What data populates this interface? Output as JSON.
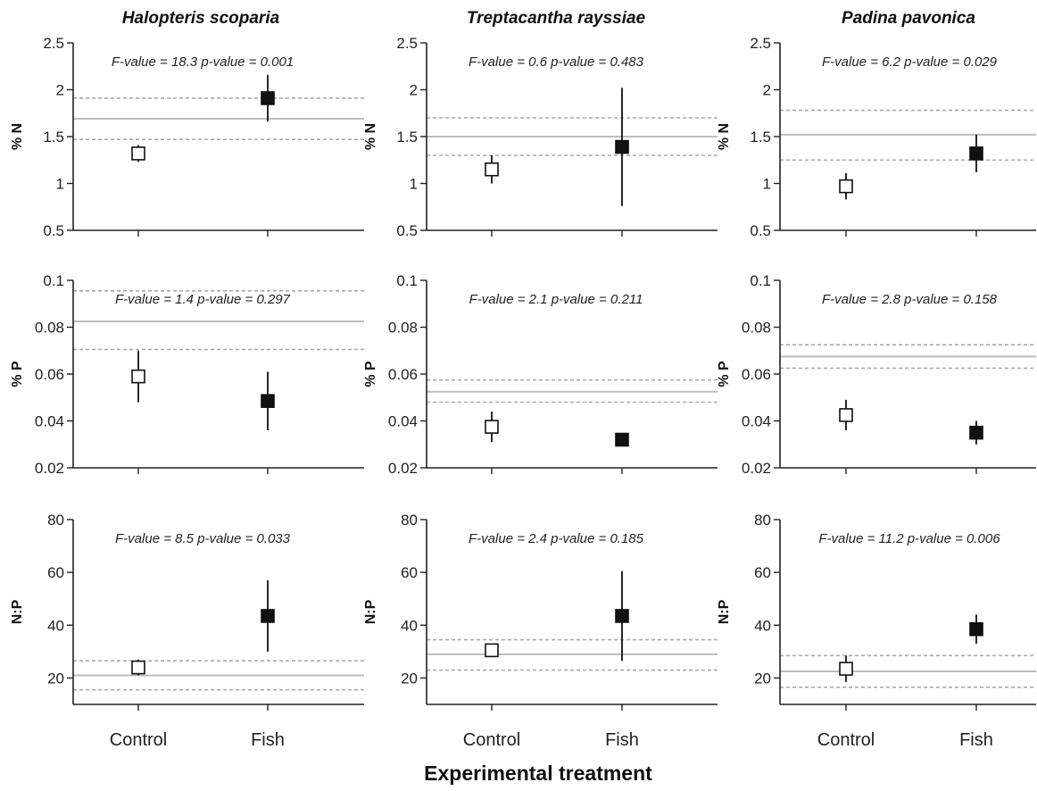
{
  "figure": {
    "x_axis_title": "Experimental treatment",
    "column_titles": [
      "Halopteris scoparia",
      "Treptacantha rayssiae",
      "Padina pavonica"
    ]
  },
  "chart_data": [
    {
      "type": "scatter",
      "species": "Halopteris scoparia",
      "ylabel": "% N",
      "ylim": [
        0.5,
        2.5
      ],
      "yticks": [
        "0.5",
        "1",
        "1.5",
        "2",
        "2.5"
      ],
      "categories": [
        "Control",
        "Fish"
      ],
      "values": [
        1.32,
        1.91
      ],
      "errors": [
        0.09,
        0.25
      ],
      "reference": {
        "mean": 1.69,
        "lower": 1.47,
        "upper": 1.91
      },
      "stats": "F-value = 18.3   p-value = 0.001",
      "markers": [
        "open",
        "filled"
      ]
    },
    {
      "type": "scatter",
      "species": "Treptacantha rayssiae",
      "ylabel": "% N",
      "ylim": [
        0.5,
        2.5
      ],
      "yticks": [
        "0.5",
        "1",
        "1.5",
        "2",
        "2.5"
      ],
      "categories": [
        "Control",
        "Fish"
      ],
      "values": [
        1.15,
        1.39
      ],
      "errors": [
        0.15,
        0.63
      ],
      "reference": {
        "mean": 1.5,
        "lower": 1.3,
        "upper": 1.7
      },
      "stats": "F-value = 0.6   p-value = 0.483",
      "markers": [
        "open",
        "filled"
      ]
    },
    {
      "type": "scatter",
      "species": "Padina pavonica",
      "ylabel": "% N",
      "ylim": [
        0.5,
        2.5
      ],
      "yticks": [
        "0.5",
        "1",
        "1.5",
        "2",
        "2.5"
      ],
      "categories": [
        "Control",
        "Fish"
      ],
      "values": [
        0.97,
        1.32
      ],
      "errors": [
        0.14,
        0.2
      ],
      "reference": {
        "mean": 1.52,
        "lower": 1.25,
        "upper": 1.78
      },
      "stats": "F-value = 6.2   p-value = 0.029",
      "markers": [
        "open",
        "filled"
      ]
    },
    {
      "type": "scatter",
      "species": "Halopteris scoparia",
      "ylabel": "% P",
      "ylim": [
        0.02,
        0.1
      ],
      "yticks": [
        "0.02",
        "0.04",
        "0.06",
        "0.08",
        "0.1"
      ],
      "categories": [
        "Control",
        "Fish"
      ],
      "values": [
        0.059,
        0.0485
      ],
      "errors": [
        0.011,
        0.0125
      ],
      "reference": {
        "mean": 0.0825,
        "lower": 0.0705,
        "upper": 0.0955
      },
      "stats": "F-value = 1.4   p-value = 0.297",
      "markers": [
        "open",
        "filled"
      ]
    },
    {
      "type": "scatter",
      "species": "Treptacantha rayssiae",
      "ylabel": "% P",
      "ylim": [
        0.02,
        0.1
      ],
      "yticks": [
        "0.02",
        "0.04",
        "0.06",
        "0.08",
        "0.1"
      ],
      "categories": [
        "Control",
        "Fish"
      ],
      "values": [
        0.0375,
        0.032
      ],
      "errors": [
        0.0065,
        0.0025
      ],
      "reference": {
        "mean": 0.0525,
        "lower": 0.048,
        "upper": 0.0575
      },
      "stats": "F-value = 2.1   p-value = 0.211",
      "markers": [
        "open",
        "filled"
      ]
    },
    {
      "type": "scatter",
      "species": "Padina pavonica",
      "ylabel": "% P",
      "ylim": [
        0.02,
        0.1
      ],
      "yticks": [
        "0.02",
        "0.04",
        "0.06",
        "0.08",
        "0.1"
      ],
      "categories": [
        "Control",
        "Fish"
      ],
      "values": [
        0.0425,
        0.035
      ],
      "errors": [
        0.0065,
        0.005
      ],
      "reference": {
        "mean": 0.0675,
        "lower": 0.0625,
        "upper": 0.0725
      },
      "stats": "F-value = 2.8   p-value = 0.158",
      "markers": [
        "open",
        "filled"
      ]
    },
    {
      "type": "scatter",
      "species": "Halopteris scoparia",
      "ylabel": "N:P",
      "ylim": [
        10,
        80
      ],
      "yticks": [
        "20",
        "40",
        "60",
        "80"
      ],
      "categories": [
        "Control",
        "Fish"
      ],
      "values": [
        24,
        43.5
      ],
      "errors": [
        3,
        13.5
      ],
      "reference": {
        "mean": 21,
        "lower": 15.5,
        "upper": 26.5
      },
      "stats": "F-value = 8.5   p-value = 0.033",
      "markers": [
        "open",
        "filled"
      ]
    },
    {
      "type": "scatter",
      "species": "Treptacantha rayssiae",
      "ylabel": "N:P",
      "ylim": [
        10,
        80
      ],
      "yticks": [
        "20",
        "40",
        "60",
        "80"
      ],
      "categories": [
        "Control",
        "Fish"
      ],
      "values": [
        30.5,
        43.5
      ],
      "errors": [
        1,
        17
      ],
      "reference": {
        "mean": 29,
        "lower": 23,
        "upper": 34.5
      },
      "stats": "F-value = 2.4   p-value = 0.185",
      "markers": [
        "open",
        "filled"
      ]
    },
    {
      "type": "scatter",
      "species": "Padina pavonica",
      "ylabel": "N:P",
      "ylim": [
        10,
        80
      ],
      "yticks": [
        "20",
        "40",
        "60",
        "80"
      ],
      "categories": [
        "Control",
        "Fish"
      ],
      "values": [
        23.5,
        38.5
      ],
      "errors": [
        5,
        5.5
      ],
      "reference": {
        "mean": 22.5,
        "lower": 16.5,
        "upper": 28.5
      },
      "stats": "F-value = 11.2   p-value = 0.006",
      "markers": [
        "open",
        "filled"
      ]
    }
  ]
}
